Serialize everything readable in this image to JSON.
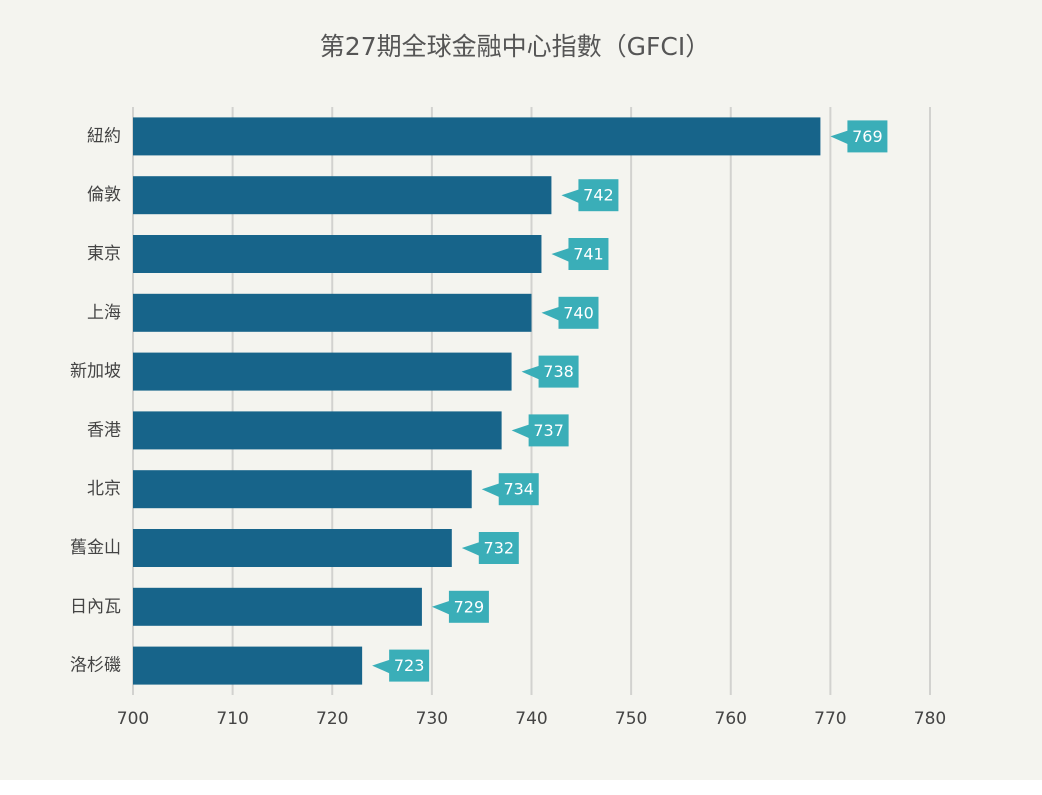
{
  "chart_data": {
    "type": "bar",
    "orientation": "horizontal",
    "title": "第27期全球金融中心指數（GFCI）",
    "categories": [
      "紐約",
      "倫敦",
      "東京",
      "上海",
      "新加坡",
      "香港",
      "北京",
      "舊金山",
      "日內瓦",
      "洛杉磯"
    ],
    "values": [
      769,
      742,
      741,
      740,
      738,
      737,
      734,
      732,
      729,
      723
    ],
    "color": "#17648a",
    "label_color": "#3aaeb8",
    "xlim": [
      700,
      780
    ],
    "xticks": [
      700,
      710,
      720,
      730,
      740,
      750,
      760,
      770,
      780
    ],
    "grid": true
  }
}
